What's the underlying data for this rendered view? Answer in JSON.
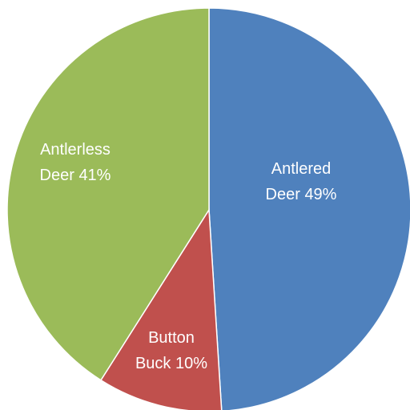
{
  "chart_data": {
    "type": "pie",
    "slices": [
      {
        "lines": [
          "Antlered",
          "Deer 49%"
        ],
        "value": 49,
        "color": "#4f81bd"
      },
      {
        "lines": [
          "Button",
          "Buck 10%"
        ],
        "value": 10,
        "color": "#c0504d"
      },
      {
        "lines": [
          "Antlerless",
          "Deer 41%"
        ],
        "value": 41,
        "color": "#9bbb59"
      }
    ]
  }
}
